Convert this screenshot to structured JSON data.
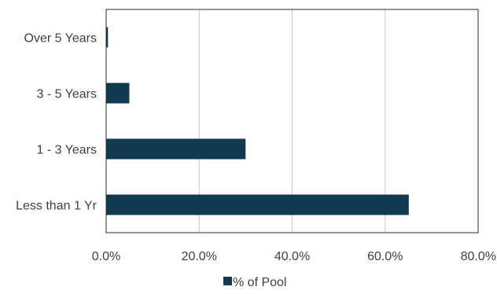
{
  "chart_data": {
    "type": "bar",
    "orientation": "horizontal",
    "title": "",
    "xlabel": "",
    "ylabel": "",
    "categories": [
      "Over 5 Years",
      "3 - 5 Years",
      "1 - 3 Years",
      "Less than 1 Yr"
    ],
    "series": [
      {
        "name": "% of Pool",
        "values": [
          0.3,
          4.9,
          29.9,
          65.0
        ],
        "color": "#0f3a4f"
      }
    ],
    "xlim": [
      0,
      80
    ],
    "x_ticks": [
      0,
      20,
      40,
      60,
      80
    ],
    "x_tick_labels": [
      "0.0%",
      "20.0%",
      "40.0%",
      "60.0%",
      "80.0%"
    ],
    "grid": "vertical",
    "legend": "bottom"
  }
}
